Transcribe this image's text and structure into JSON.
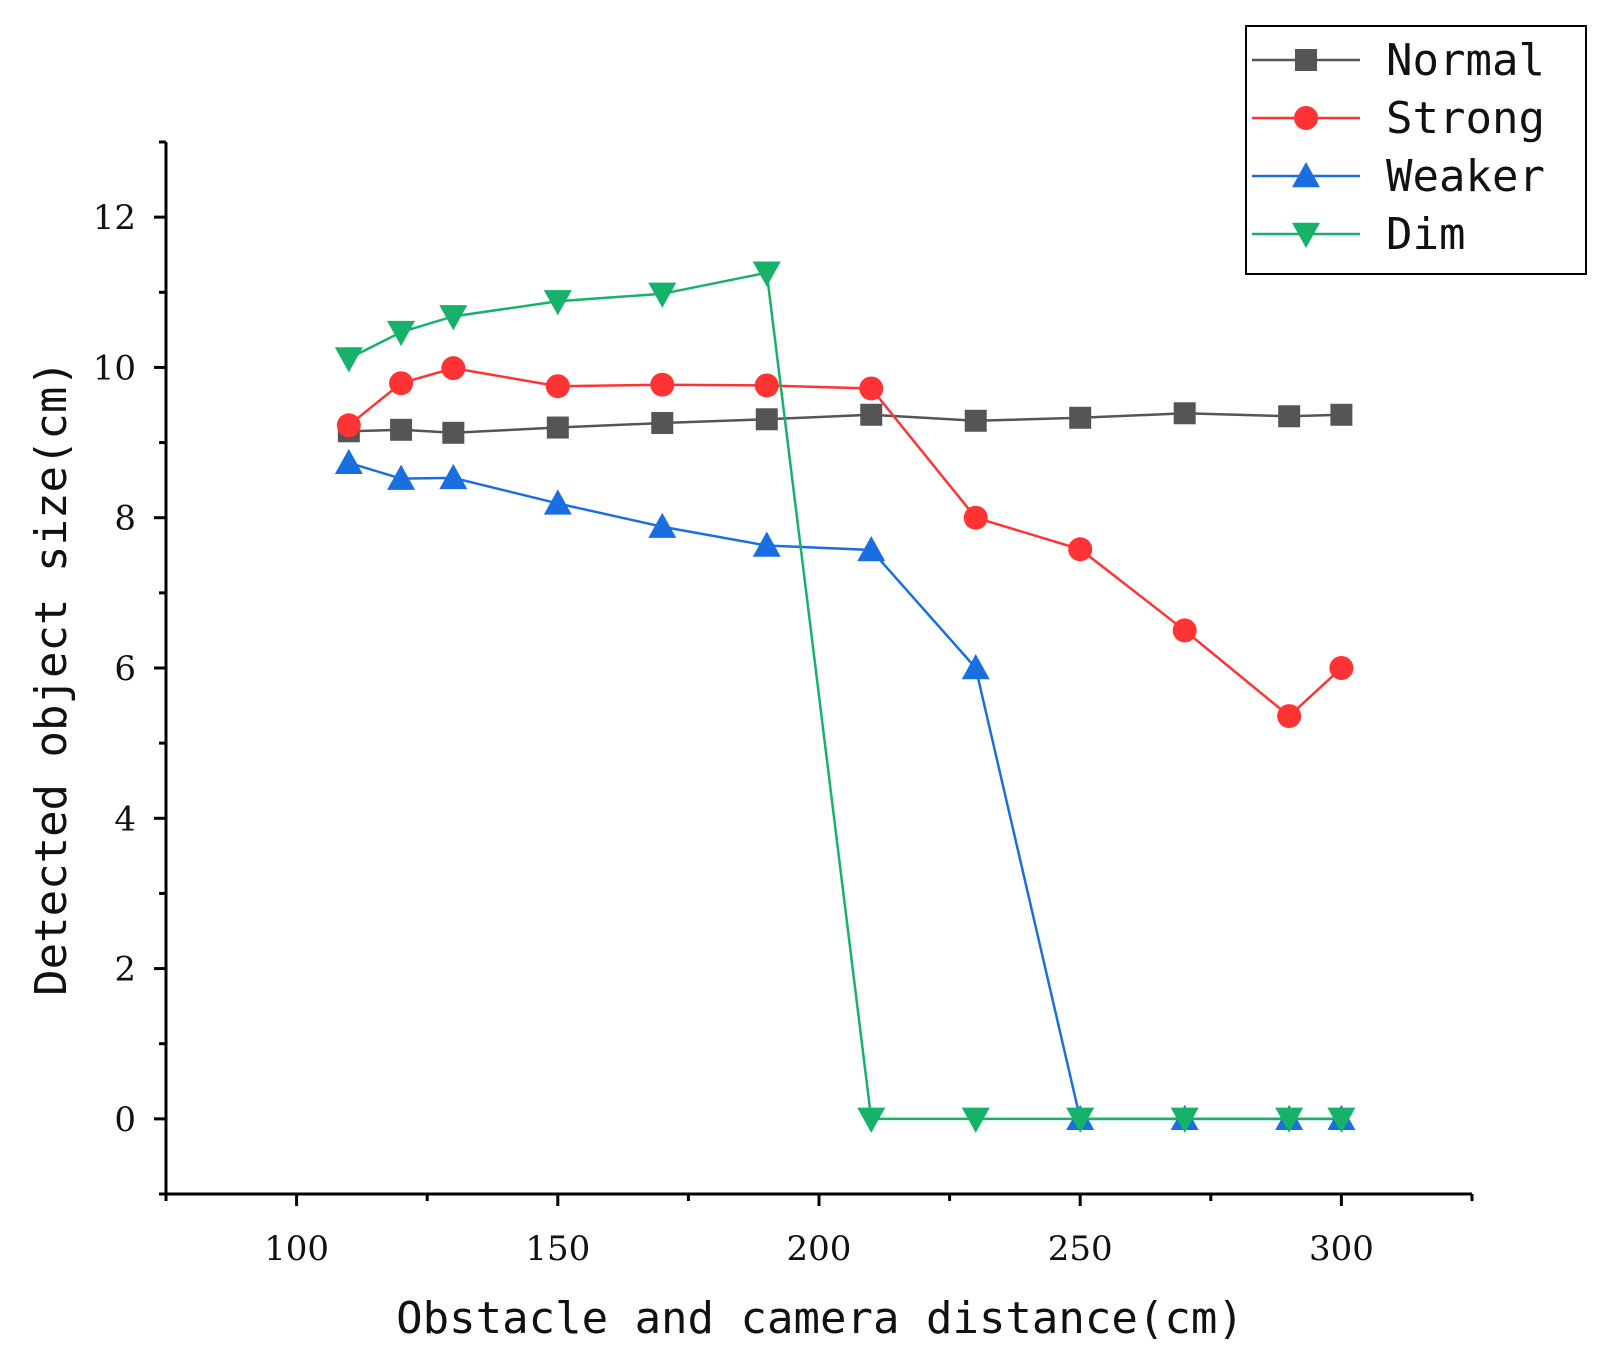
{
  "chart_data": {
    "type": "line",
    "title": "",
    "xlabel": "Obstacle and camera distance(cm)",
    "ylabel": "Detected object size(cm)",
    "xlim": [
      75,
      325
    ],
    "ylim": [
      -1,
      13
    ],
    "xticks": [
      100,
      150,
      200,
      250,
      300
    ],
    "yticks": [
      0,
      2,
      4,
      6,
      8,
      10,
      12
    ],
    "x": [
      110,
      120,
      130,
      150,
      170,
      190,
      210,
      230,
      250,
      270,
      290,
      300
    ],
    "legend_position": "top-right",
    "series": [
      {
        "name": "Normal",
        "color": "#555555",
        "marker": "square",
        "values": [
          9.15,
          9.17,
          9.13,
          9.2,
          9.26,
          9.31,
          9.37,
          9.29,
          9.33,
          9.39,
          9.35,
          9.37
        ]
      },
      {
        "name": "Strong",
        "color": "#ff3333",
        "marker": "circle",
        "values": [
          9.23,
          9.79,
          9.99,
          9.75,
          9.77,
          9.76,
          9.72,
          8.0,
          7.58,
          6.5,
          5.36,
          6.0
        ]
      },
      {
        "name": "Weaker",
        "color": "#1a6fe0",
        "marker": "triangle-up",
        "values": [
          8.73,
          8.52,
          8.53,
          8.19,
          7.88,
          7.63,
          7.57,
          6.0,
          0,
          0,
          0,
          0
        ]
      },
      {
        "name": "Dim",
        "color": "#17b26a",
        "marker": "triangle-down",
        "values": [
          10.12,
          10.47,
          10.68,
          10.88,
          10.98,
          11.26,
          0,
          0,
          0,
          0,
          0,
          0
        ]
      }
    ]
  }
}
